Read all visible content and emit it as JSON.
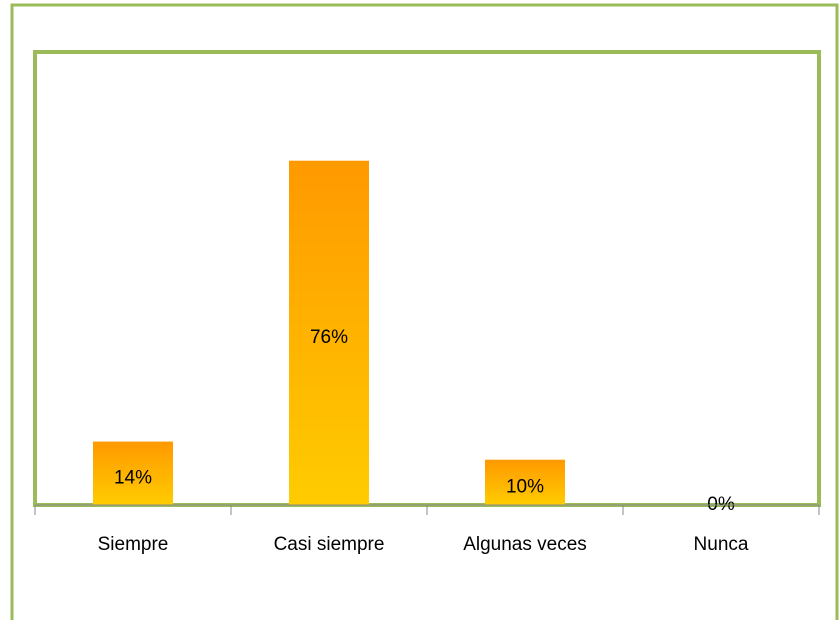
{
  "chart_data": {
    "type": "bar",
    "categories": [
      "Siempre",
      "Casi siempre",
      "Algunas veces",
      "Nunca"
    ],
    "values": [
      14,
      76,
      10,
      0
    ],
    "value_labels": [
      "14%",
      "76%",
      "10%",
      "0%"
    ],
    "colors": [
      "#ff9900",
      "#ffcc00"
    ],
    "frame_color": "#9bbb59",
    "ylim": [
      0,
      100
    ]
  }
}
